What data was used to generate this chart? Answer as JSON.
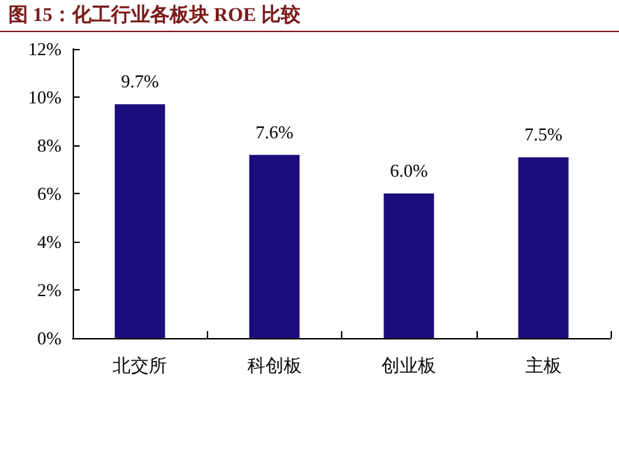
{
  "chart_data": {
    "type": "bar",
    "title": "图 15：化工行业各板块 ROE 比较",
    "categories": [
      "北交所",
      "科创板",
      "创业板",
      "主板"
    ],
    "values": [
      9.7,
      7.6,
      6.0,
      7.5
    ],
    "value_labels": [
      "9.7%",
      "7.6%",
      "6.0%",
      "7.5%"
    ],
    "color": "#1c0d7c",
    "ylim": [
      0,
      12
    ],
    "yticks": [
      {
        "value": 0,
        "label": "0%"
      },
      {
        "value": 2,
        "label": "2%"
      },
      {
        "value": 4,
        "label": "4%"
      },
      {
        "value": 6,
        "label": "6%"
      },
      {
        "value": 8,
        "label": "8%"
      },
      {
        "value": 10,
        "label": "10%"
      },
      {
        "value": 12,
        "label": "12%"
      }
    ],
    "grid": false
  }
}
